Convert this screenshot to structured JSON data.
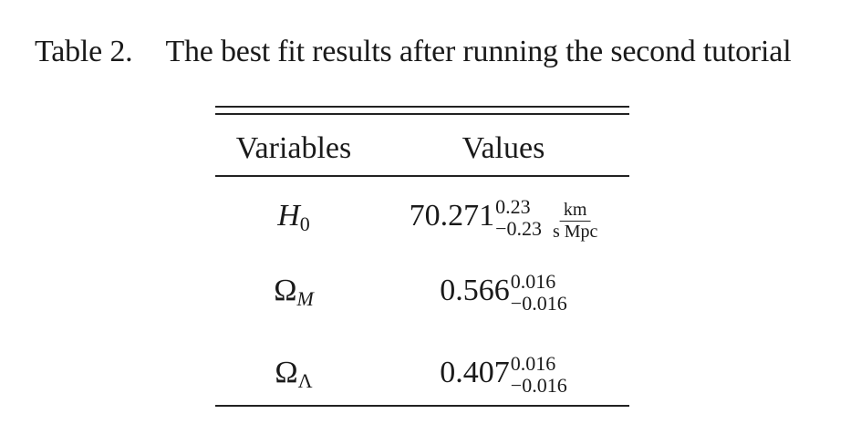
{
  "caption": {
    "label": "Table 2.",
    "text": "The best fit results after running the second tutorial"
  },
  "table": {
    "headers": [
      "Variables",
      "Values"
    ],
    "rows": [
      {
        "symbol_main": "H",
        "symbol_sub": "0",
        "value": "70.271",
        "upper": "0.23",
        "lower": "−0.23",
        "unit_num": "km",
        "unit_den": "s Mpc"
      },
      {
        "symbol_main": "Ω",
        "symbol_sub": "M",
        "value": "0.566",
        "upper": "0.016",
        "lower": "−0.016"
      },
      {
        "symbol_main": "Ω",
        "symbol_sub": "Λ",
        "value": "0.407",
        "upper": "0.016",
        "lower": "−0.016"
      }
    ]
  }
}
